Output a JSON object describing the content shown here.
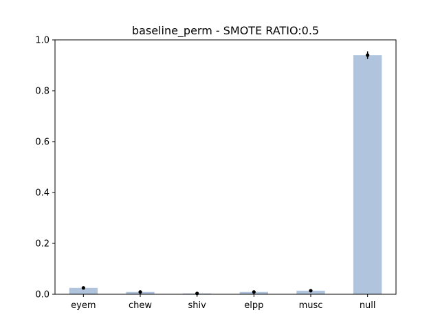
{
  "chart_data": {
    "type": "bar",
    "title": "baseline_perm - SMOTE RATIO:0.5",
    "xlabel": "",
    "ylabel": "",
    "categories": [
      "eyem",
      "chew",
      "shiv",
      "elpp",
      "musc",
      "null"
    ],
    "values": [
      0.025,
      0.009,
      0.003,
      0.009,
      0.014,
      0.94
    ],
    "error": [
      0.003,
      0.006,
      0.002,
      0.005,
      0.004,
      0.015
    ],
    "ylim": [
      0,
      1.0
    ],
    "yticks": [
      0.0,
      0.2,
      0.4,
      0.6,
      0.8,
      1.0
    ],
    "ytick_labels": [
      "0.0",
      "0.2",
      "0.4",
      "0.6",
      "0.8",
      "1.0"
    ],
    "grid": false,
    "bar_color": "#b0c4de",
    "marker_color": "#000000"
  }
}
